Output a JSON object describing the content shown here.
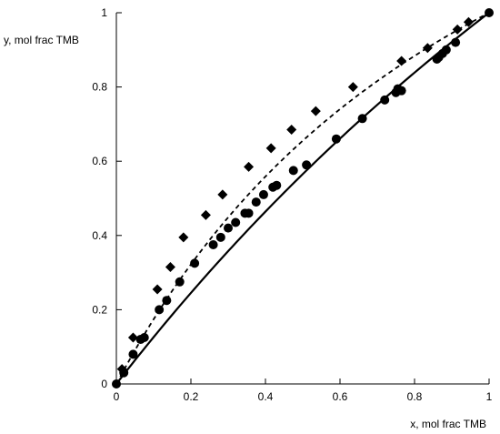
{
  "chart_data": {
    "type": "scatter",
    "xlabel": "x, mol frac TMB",
    "ylabel": "y, mol frac TMB",
    "xlim": [
      0,
      1
    ],
    "ylim": [
      0,
      1
    ],
    "x_ticks": [
      "0",
      "0.2",
      "0.4",
      "0.6",
      "0.8",
      "1"
    ],
    "y_ticks": [
      "0",
      "0.2",
      "0.4",
      "0.6",
      "0.8",
      "1"
    ],
    "grid": false,
    "legend": "none",
    "series": [
      {
        "marker": "circle",
        "color": "#000000",
        "points": [
          [
            0.0,
            0.0
          ],
          [
            0.02,
            0.03
          ],
          [
            0.045,
            0.08
          ],
          [
            0.065,
            0.12
          ],
          [
            0.075,
            0.125
          ],
          [
            0.115,
            0.2
          ],
          [
            0.135,
            0.225
          ],
          [
            0.17,
            0.275
          ],
          [
            0.21,
            0.325
          ],
          [
            0.26,
            0.375
          ],
          [
            0.28,
            0.395
          ],
          [
            0.3,
            0.42
          ],
          [
            0.32,
            0.435
          ],
          [
            0.345,
            0.46
          ],
          [
            0.355,
            0.46
          ],
          [
            0.375,
            0.49
          ],
          [
            0.395,
            0.51
          ],
          [
            0.42,
            0.53
          ],
          [
            0.43,
            0.535
          ],
          [
            0.475,
            0.575
          ],
          [
            0.51,
            0.59
          ],
          [
            0.59,
            0.66
          ],
          [
            0.66,
            0.715
          ],
          [
            0.72,
            0.765
          ],
          [
            0.75,
            0.785
          ],
          [
            0.755,
            0.795
          ],
          [
            0.765,
            0.79
          ],
          [
            0.86,
            0.875
          ],
          [
            0.865,
            0.88
          ],
          [
            0.875,
            0.89
          ],
          [
            0.885,
            0.9
          ],
          [
            0.91,
            0.92
          ],
          [
            1.0,
            1.0
          ]
        ]
      },
      {
        "marker": "diamond",
        "color": "#000000",
        "points": [
          [
            0.015,
            0.04
          ],
          [
            0.045,
            0.125
          ],
          [
            0.11,
            0.255
          ],
          [
            0.145,
            0.315
          ],
          [
            0.18,
            0.395
          ],
          [
            0.24,
            0.455
          ],
          [
            0.285,
            0.51
          ],
          [
            0.355,
            0.585
          ],
          [
            0.415,
            0.635
          ],
          [
            0.47,
            0.685
          ],
          [
            0.535,
            0.735
          ],
          [
            0.635,
            0.8
          ],
          [
            0.765,
            0.87
          ],
          [
            0.835,
            0.905
          ],
          [
            0.915,
            0.955
          ],
          [
            0.945,
            0.975
          ]
        ]
      }
    ],
    "curves": [
      {
        "style": "solid",
        "color": "#000000",
        "relative_volatility": 1.3
      },
      {
        "style": "dashed",
        "color": "#000000",
        "relative_volatility": 1.9
      }
    ]
  }
}
